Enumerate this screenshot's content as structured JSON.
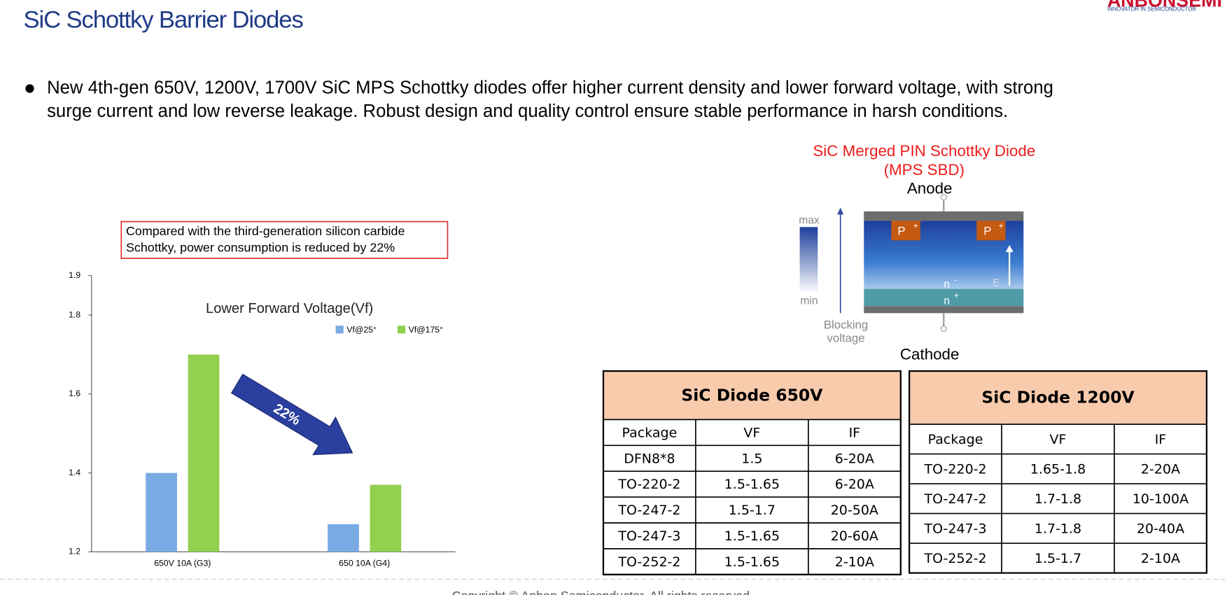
{
  "header": {
    "title": "SiC Schottky Barrier Diodes",
    "logo": "ANBONSEMI",
    "logo_tagline": "INNOVATOR IN SEMICONDUCTOR"
  },
  "bullet": [
    "New 4th-gen 650V, 1200V, 1700V SiC MPS Schottky diodes offer higher current density and lower forward voltage, with strong",
    "surge current and low reverse leakage. Robust design and quality control ensure stable performance in harsh conditions."
  ],
  "chart_data": {
    "type": "bar",
    "title": "Lower Forward Voltage(Vf)",
    "categories": [
      "650V 10A (G3)",
      "650 10A (G4)"
    ],
    "series": [
      {
        "name": "Vf@25°",
        "color": "#7aaae3",
        "values": [
          1.4,
          1.27
        ]
      },
      {
        "name": "Vf@175°",
        "color": "#92d050",
        "values": [
          1.7,
          1.37
        ]
      }
    ],
    "ylim": [
      1.2,
      1.9
    ],
    "yticks": [
      1.2,
      1.4,
      1.6,
      1.8,
      1.9
    ],
    "annotation": "22%",
    "callout": [
      "Compared with the third-generation silicon carbide",
      "Schottky, power consumption is reduced by 22%"
    ]
  },
  "diagram": {
    "title": [
      "SiC Merged PIN Schottky Diode",
      "(MPS SBD)"
    ],
    "anode": "Anode",
    "cathode": "Cathode",
    "max": "max",
    "min": "min",
    "blocking": [
      "Blocking",
      "voltage"
    ],
    "p_plus": "P",
    "plus": "+",
    "n_minus": "n",
    "minus": "-",
    "n_plus": "n",
    "field": "E"
  },
  "tables": [
    {
      "title": "SiC Diode  650V",
      "columns": [
        "Package",
        "VF",
        "IF"
      ],
      "rows": [
        [
          "DFN8*8",
          "1.5",
          "6-20A"
        ],
        [
          "TO-220-2",
          "1.5-1.65",
          "6-20A"
        ],
        [
          "TO-247-2",
          "1.5-1.7",
          "20-50A"
        ],
        [
          "TO-247-3",
          "1.5-1.65",
          "20-60A"
        ],
        [
          "TO-252-2",
          "1.5-1.65",
          "2-10A"
        ]
      ]
    },
    {
      "title": "SiC Diode 1200V",
      "columns": [
        "Package",
        "VF",
        "IF"
      ],
      "rows": [
        [
          "TO-220-2",
          "1.65-1.8",
          "2-20A"
        ],
        [
          "TO-247-2",
          "1.7-1.8",
          "10-100A"
        ],
        [
          "TO-247-3",
          "1.7-1.8",
          "20-40A"
        ],
        [
          "TO-252-2",
          "1.5-1.7",
          "2-10A"
        ]
      ]
    }
  ],
  "footer": "Copyright © Anbon Semiconductor. All rights reserved."
}
